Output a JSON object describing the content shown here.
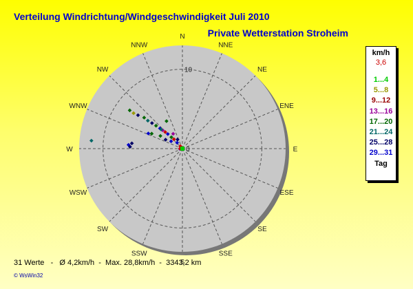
{
  "title": "Verteilung Windrichtung/Windgeschwindigkeit  Juli 2010",
  "subtitle": "Private Wetterstation Stroheim",
  "footer": "31 Werte   -   Ø 4,2km/h  -  Max. 28,8km/h  -  3343,2 km",
  "brand": "© WsWin32",
  "legend": {
    "header": "km/h",
    "subheader": "3,6",
    "items": [
      {
        "label": "1...4",
        "color": "#00cc00"
      },
      {
        "label": "5...8",
        "color": "#999900"
      },
      {
        "label": "9...12",
        "color": "#990000"
      },
      {
        "label": "13...16",
        "color": "#990099"
      },
      {
        "label": "17...20",
        "color": "#006600"
      },
      {
        "label": "21...24",
        "color": "#006666"
      },
      {
        "label": "25...28",
        "color": "#000066"
      },
      {
        "label": "29...31",
        "color": "#0000cc"
      },
      {
        "label": "Tag",
        "color": "#000000"
      }
    ]
  },
  "chart_data": {
    "type": "scatter",
    "projection": "polar",
    "directions": [
      "N",
      "NNE",
      "NE",
      "ENE",
      "E",
      "ESE",
      "SE",
      "SSE",
      "S",
      "SSW",
      "SW",
      "WSW",
      "W",
      "WNW",
      "NW",
      "NNW"
    ],
    "radial_tick_labels": [
      "10",
      "0"
    ],
    "rlim": [
      0,
      10
    ],
    "grid": true,
    "legend_position": "right",
    "points": [
      {
        "bearing": 320,
        "r": 0.4,
        "color": "#cc0000"
      },
      {
        "bearing": 318,
        "r": 1.0,
        "color": "#0000cc"
      },
      {
        "bearing": 318,
        "r": 1.6,
        "color": "#cc0000"
      },
      {
        "bearing": 316,
        "r": 2.0,
        "color": "#006600"
      },
      {
        "bearing": 315,
        "r": 2.6,
        "color": "#0000cc"
      },
      {
        "bearing": 314,
        "r": 3.0,
        "color": "#cc0000"
      },
      {
        "bearing": 313,
        "r": 3.4,
        "color": "#990099"
      },
      {
        "bearing": 312,
        "r": 3.8,
        "color": "#0000cc"
      },
      {
        "bearing": 311,
        "r": 4.4,
        "color": "#006600"
      },
      {
        "bearing": 310,
        "r": 5.0,
        "color": "#000066"
      },
      {
        "bearing": 309,
        "r": 5.6,
        "color": "#006666"
      },
      {
        "bearing": 309,
        "r": 6.2,
        "color": "#006600"
      },
      {
        "bearing": 307,
        "r": 7.0,
        "color": "#000066"
      },
      {
        "bearing": 306,
        "r": 7.6,
        "color": "#999900"
      },
      {
        "bearing": 306,
        "r": 8.2,
        "color": "#006600"
      },
      {
        "bearing": 332,
        "r": 1.3,
        "color": "#000066"
      },
      {
        "bearing": 328,
        "r": 2.2,
        "color": "#990099"
      },
      {
        "bearing": 312,
        "r": 3.6,
        "color": "#006666"
      },
      {
        "bearing": 300,
        "r": 3.2,
        "color": "#006600"
      },
      {
        "bearing": 298,
        "r": 2.4,
        "color": "#000066"
      },
      {
        "bearing": 296,
        "r": 4.3,
        "color": "#006600"
      },
      {
        "bearing": 294,
        "r": 4.7,
        "color": "#0000cc"
      },
      {
        "bearing": 303,
        "r": 1.7,
        "color": "#0000cc"
      },
      {
        "bearing": 330,
        "r": 4.0,
        "color": "#006600"
      },
      {
        "bearing": 276,
        "r": 6.4,
        "color": "#000066"
      },
      {
        "bearing": 274,
        "r": 6.8,
        "color": "#0000cc"
      },
      {
        "bearing": 272,
        "r": 6.6,
        "color": "#000066"
      },
      {
        "bearing": 275,
        "r": 11.5,
        "color": "#006666"
      },
      {
        "bearing": 260,
        "r": 0.3,
        "color": "#0000cc"
      },
      {
        "bearing": 270,
        "r": 0.3,
        "color": "#cc0000"
      },
      {
        "bearing": 90,
        "r": 0.0,
        "color": "#00cc00"
      }
    ]
  }
}
